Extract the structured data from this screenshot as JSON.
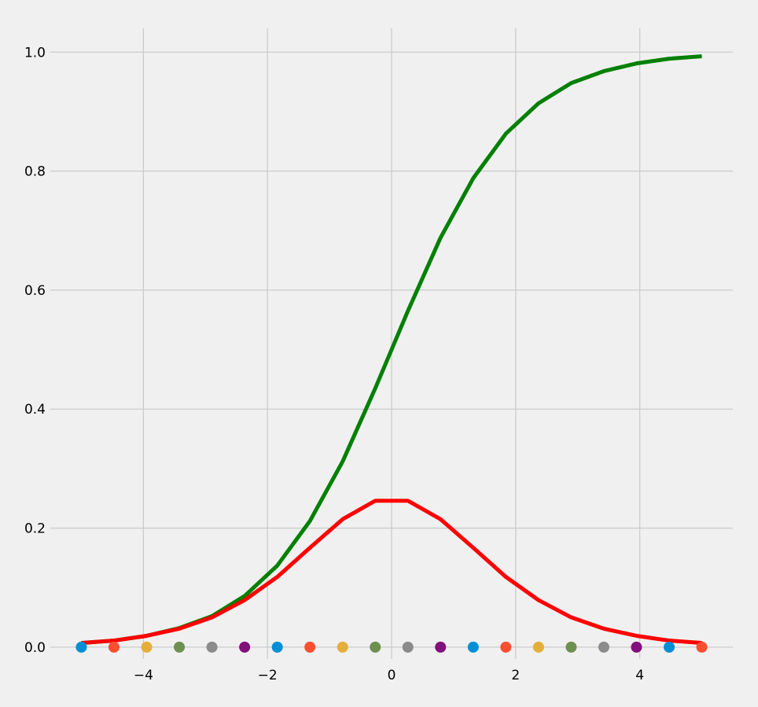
{
  "chart_data": {
    "type": "line",
    "title": "",
    "xlabel": "",
    "ylabel": "",
    "xlim": [
      -5.5,
      5.5
    ],
    "ylim": [
      -0.02,
      1.04
    ],
    "grid": true,
    "background": "#f0f0f0",
    "grid_color": "#cbcbcb",
    "xticks": [
      -4,
      -2,
      0,
      2,
      4
    ],
    "xtick_labels": [
      "−4",
      "−2",
      "0",
      "2",
      "4"
    ],
    "yticks": [
      0.0,
      0.2,
      0.4,
      0.6,
      0.8,
      1.0
    ],
    "ytick_labels": [
      "0.0",
      "0.2",
      "0.4",
      "0.6",
      "0.8",
      "1.0"
    ],
    "x": [
      -5.0,
      -4.474,
      -3.947,
      -3.421,
      -2.895,
      -2.368,
      -1.842,
      -1.316,
      -0.789,
      -0.263,
      0.263,
      0.789,
      1.316,
      1.842,
      2.368,
      2.895,
      3.421,
      3.947,
      4.474,
      5.0
    ],
    "series": [
      {
        "color": "#008000",
        "values": [
          0.007,
          0.011,
          0.019,
          0.032,
          0.052,
          0.086,
          0.137,
          0.212,
          0.312,
          0.435,
          0.565,
          0.688,
          0.788,
          0.863,
          0.914,
          0.948,
          0.968,
          0.981,
          0.989,
          0.993
        ]
      },
      {
        "color": "#ff0000",
        "values": [
          0.007,
          0.011,
          0.019,
          0.031,
          0.05,
          0.079,
          0.118,
          0.167,
          0.215,
          0.246,
          0.246,
          0.215,
          0.167,
          0.118,
          0.079,
          0.05,
          0.031,
          0.019,
          0.011,
          0.007
        ]
      }
    ],
    "points": {
      "y": 0.0,
      "colors": [
        "#008fd5",
        "#fc4f30",
        "#e5ae38",
        "#6d904f",
        "#8b8b8b",
        "#810f7c",
        "#008fd5",
        "#fc4f30",
        "#e5ae38",
        "#6d904f",
        "#8b8b8b",
        "#810f7c",
        "#008fd5",
        "#fc4f30",
        "#e5ae38",
        "#6d904f",
        "#8b8b8b",
        "#810f7c",
        "#008fd5",
        "#fc4f30"
      ]
    }
  }
}
